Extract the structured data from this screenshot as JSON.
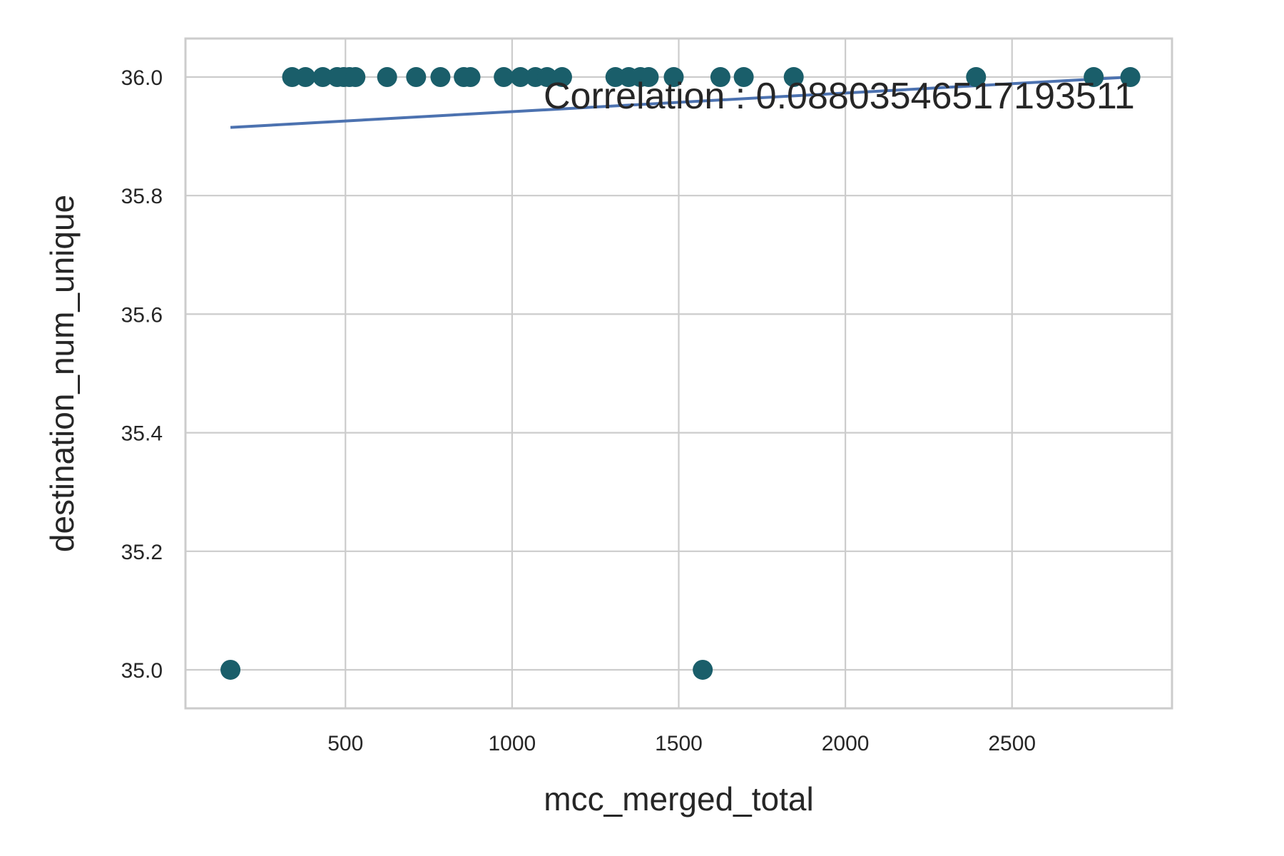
{
  "chart_data": {
    "type": "scatter",
    "title": "",
    "xlabel": "mcc_merged_total",
    "ylabel": "destination_num_unique",
    "xlim": [
      20,
      2980
    ],
    "ylim": [
      34.935,
      36.065
    ],
    "x_ticks": [
      500,
      1000,
      1500,
      2000,
      2500
    ],
    "y_ticks": [
      35.0,
      35.2,
      35.4,
      35.6,
      35.8,
      36.0
    ],
    "x_tick_labels": [
      "500",
      "1000",
      "1500",
      "2000",
      "2500"
    ],
    "y_tick_labels": [
      "35.0",
      "35.2",
      "35.4",
      "35.6",
      "35.8",
      "36.0"
    ],
    "grid": true,
    "annotation": "Correlation : 0.08803546517193511",
    "point_color": "#1a5e6a",
    "trend_color": "#4c72b0",
    "points": [
      {
        "x": 155,
        "y": 35.0
      },
      {
        "x": 1572,
        "y": 35.0
      },
      {
        "x": 340,
        "y": 36.0
      },
      {
        "x": 380,
        "y": 36.0
      },
      {
        "x": 432,
        "y": 36.0
      },
      {
        "x": 475,
        "y": 36.0
      },
      {
        "x": 495,
        "y": 36.0
      },
      {
        "x": 512,
        "y": 36.0
      },
      {
        "x": 530,
        "y": 36.0
      },
      {
        "x": 625,
        "y": 36.0
      },
      {
        "x": 712,
        "y": 36.0
      },
      {
        "x": 785,
        "y": 36.0
      },
      {
        "x": 855,
        "y": 36.0
      },
      {
        "x": 875,
        "y": 36.0
      },
      {
        "x": 975,
        "y": 36.0
      },
      {
        "x": 1025,
        "y": 36.0
      },
      {
        "x": 1070,
        "y": 36.0
      },
      {
        "x": 1105,
        "y": 36.0
      },
      {
        "x": 1150,
        "y": 36.0
      },
      {
        "x": 1310,
        "y": 36.0
      },
      {
        "x": 1350,
        "y": 36.0
      },
      {
        "x": 1385,
        "y": 36.0
      },
      {
        "x": 1410,
        "y": 36.0
      },
      {
        "x": 1485,
        "y": 36.0
      },
      {
        "x": 1625,
        "y": 36.0
      },
      {
        "x": 1695,
        "y": 36.0
      },
      {
        "x": 1845,
        "y": 36.0
      },
      {
        "x": 2392,
        "y": 36.0
      },
      {
        "x": 2745,
        "y": 36.0
      },
      {
        "x": 2855,
        "y": 36.0
      }
    ],
    "trend_line": {
      "x": [
        155,
        2855
      ],
      "y": [
        35.915,
        36.0
      ]
    }
  }
}
